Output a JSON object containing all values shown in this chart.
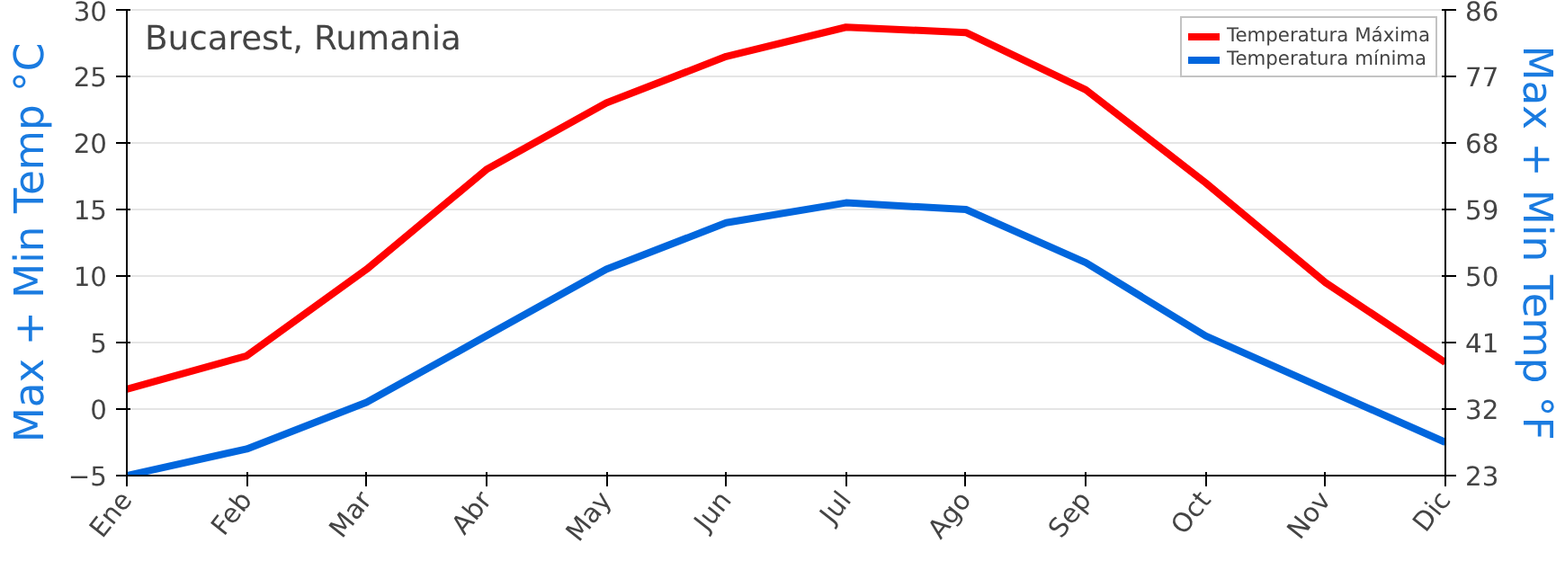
{
  "chart_data": {
    "type": "line",
    "title": "Bucarest, Rumania",
    "ylabel": "Max + Min Temp °C",
    "y2label": "Max + Min Temp °F",
    "categories": [
      "Ene",
      "Feb",
      "Mar",
      "Abr",
      "May",
      "Jun",
      "Jul",
      "Ago",
      "Sep",
      "Oct",
      "Nov",
      "Dic"
    ],
    "series": [
      {
        "name": "Temperatura Máxima",
        "color": "#ff0000",
        "values": [
          1.5,
          4,
          10.5,
          18,
          23,
          26.5,
          28.7,
          28.3,
          24,
          17,
          9.5,
          3.5
        ]
      },
      {
        "name": "Temperatura mínima",
        "color": "#0066dd",
        "values": [
          -5,
          -3,
          0.5,
          5.5,
          10.5,
          14,
          15.5,
          15,
          11,
          5.5,
          1.5,
          -2.5
        ]
      }
    ],
    "ylim": [
      -5,
      30
    ],
    "yticks": [
      -5,
      0,
      5,
      10,
      15,
      20,
      25,
      30
    ],
    "y2lim": [
      23,
      86
    ],
    "y2ticks": [
      23,
      32,
      41,
      50,
      59,
      68,
      77,
      86
    ],
    "grid": "y",
    "legend": "top right",
    "marker": "none",
    "line_style": "solid"
  }
}
